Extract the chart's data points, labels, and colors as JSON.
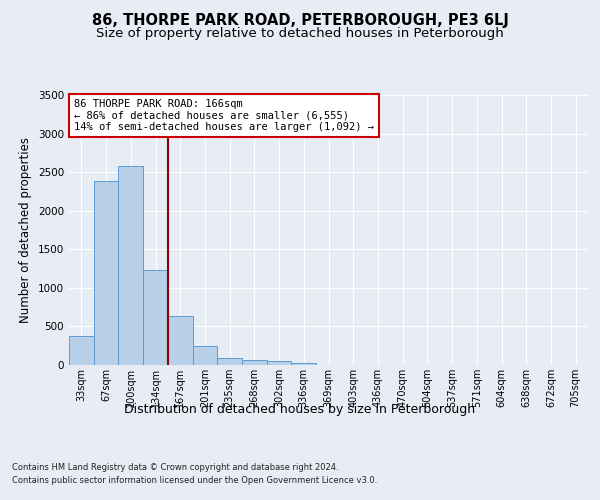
{
  "title": "86, THORPE PARK ROAD, PETERBOROUGH, PE3 6LJ",
  "subtitle": "Size of property relative to detached houses in Peterborough",
  "xlabel": "Distribution of detached houses by size in Peterborough",
  "ylabel": "Number of detached properties",
  "categories": [
    "33sqm",
    "67sqm",
    "100sqm",
    "134sqm",
    "167sqm",
    "201sqm",
    "235sqm",
    "268sqm",
    "302sqm",
    "336sqm",
    "369sqm",
    "403sqm",
    "436sqm",
    "470sqm",
    "504sqm",
    "537sqm",
    "571sqm",
    "604sqm",
    "638sqm",
    "672sqm",
    "705sqm"
  ],
  "values": [
    380,
    2390,
    2580,
    1230,
    640,
    240,
    90,
    65,
    55,
    20,
    5,
    3,
    2,
    1,
    0,
    0,
    0,
    0,
    0,
    0,
    0
  ],
  "bar_color": "#b8d0e8",
  "bar_edge_color": "#5b9bd5",
  "property_line_color": "#8b0000",
  "annotation_text": "86 THORPE PARK ROAD: 166sqm\n← 86% of detached houses are smaller (6,555)\n14% of semi-detached houses are larger (1,092) →",
  "annotation_box_color": "#ffffff",
  "annotation_box_edge_color": "#cc0000",
  "ylim": [
    0,
    3500
  ],
  "yticks": [
    0,
    500,
    1000,
    1500,
    2000,
    2500,
    3000,
    3500
  ],
  "background_color": "#e8edf5",
  "plot_background_color": "#e8edf5",
  "footer_line1": "Contains HM Land Registry data © Crown copyright and database right 2024.",
  "footer_line2": "Contains public sector information licensed under the Open Government Licence v3.0.",
  "title_fontsize": 10.5,
  "subtitle_fontsize": 9.5,
  "xlabel_fontsize": 9,
  "ylabel_fontsize": 8.5,
  "grid_color": "#ffffff",
  "tick_fontsize": 7,
  "annotation_fontsize": 7.5,
  "footer_fontsize": 6,
  "line_x_index": 3.5
}
